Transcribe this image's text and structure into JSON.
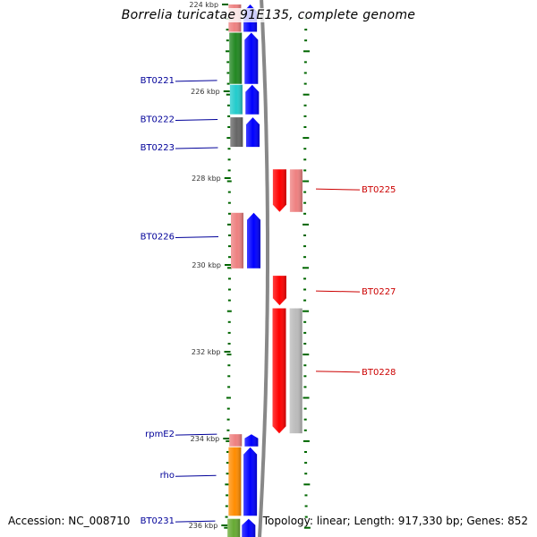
{
  "map": {
    "title": "Borrelia turicatae 91E135, complete genome",
    "accession": "Accession: NC_008710",
    "summary": "Topology: linear; Length: 917,330 bp; Genes: 852"
  },
  "colors": {
    "forward_gene": "#0000ff",
    "reverse_gene": "#ff0000",
    "forward_label": "#000099",
    "reverse_label": "#cc0000",
    "tick": "#006600",
    "backbone": "#888888"
  },
  "ticks": {
    "labels": [
      {
        "text": "224 kbp",
        "kbp": 224
      },
      {
        "text": "226 kbp",
        "kbp": 226
      },
      {
        "text": "228 kbp",
        "kbp": 228
      },
      {
        "text": "230 kbp",
        "kbp": 230
      },
      {
        "text": "232 kbp",
        "kbp": 232
      },
      {
        "text": "234 kbp",
        "kbp": 234
      },
      {
        "text": "236 kbp",
        "kbp": 236
      }
    ]
  },
  "genes": {
    "forward": [
      {
        "start_kbp": 224.0,
        "end_kbp": 224.65,
        "cog_color": "#ee8080"
      },
      {
        "start_kbp": 224.65,
        "end_kbp": 225.85,
        "cog_color": "#228822"
      },
      {
        "start_kbp": 225.85,
        "end_kbp": 226.55,
        "cog_color": "#22cccc"
      },
      {
        "start_kbp": 226.6,
        "end_kbp": 227.3,
        "cog_color": "#666666"
      },
      {
        "start_kbp": 228.8,
        "end_kbp": 230.1,
        "cog_color": "#ee8080"
      },
      {
        "start_kbp": 233.9,
        "end_kbp": 234.2,
        "cog_color": "#ee8080"
      },
      {
        "start_kbp": 234.2,
        "end_kbp": 235.8,
        "cog_color": "#ff8c00"
      },
      {
        "start_kbp": 235.85,
        "end_kbp": 236.3,
        "cog_color": "#66aa33"
      }
    ],
    "reverse": [
      {
        "start_kbp": 227.8,
        "end_kbp": 228.8,
        "cog_color": "#ee8080"
      },
      {
        "start_kbp": 230.25,
        "end_kbp": 230.95,
        "cog_color": "#ffffff"
      },
      {
        "start_kbp": 231.0,
        "end_kbp": 233.9,
        "cog_color": "#bbbbbb"
      }
    ]
  },
  "labels": {
    "forward": [
      {
        "text": "BT0221",
        "kbp": 225.75
      },
      {
        "text": "BT0222",
        "kbp": 226.65
      },
      {
        "text": "BT0223",
        "kbp": 227.3
      },
      {
        "text": "BT0226",
        "kbp": 229.35
      },
      {
        "text": "rpmE2",
        "kbp": 233.9
      },
      {
        "text": "rho",
        "kbp": 234.85
      },
      {
        "text": "BT0231",
        "kbp": 235.9
      }
    ],
    "reverse": [
      {
        "text": "BT0225",
        "kbp": 228.25
      },
      {
        "text": "BT0227",
        "kbp": 230.6
      },
      {
        "text": "BT0228",
        "kbp": 232.45
      }
    ]
  }
}
